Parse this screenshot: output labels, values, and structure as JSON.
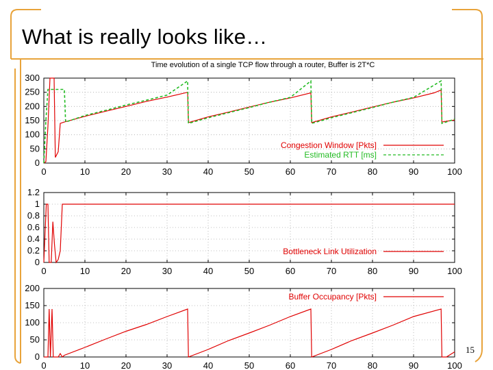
{
  "slide": {
    "title": "What is really looks like…",
    "page_number": "15",
    "accent_color": "#e8a33a"
  },
  "chart_data": [
    {
      "type": "line",
      "title": "Time evolution of a single TCP flow through a router, Buffer is 2T*C",
      "xlim": [
        0,
        100
      ],
      "ylim": [
        0,
        300
      ],
      "x_ticks": [
        0,
        10,
        20,
        30,
        40,
        50,
        60,
        70,
        80,
        90,
        100
      ],
      "y_ticks": [
        0,
        50,
        100,
        150,
        200,
        250,
        300
      ],
      "grid": true,
      "legend_position": "bottom-right",
      "series": [
        {
          "name": "Congestion Window [Pkts]",
          "color": "#e00000",
          "style": "solid",
          "points": [
            [
              0,
              0
            ],
            [
              0.5,
              5
            ],
            [
              1,
              130
            ],
            [
              1.5,
              300
            ],
            [
              2.5,
              300
            ],
            [
              2.8,
              20
            ],
            [
              3.5,
              40
            ],
            [
              4,
              140
            ],
            [
              5,
              145
            ],
            [
              10,
              165
            ],
            [
              15,
              183
            ],
            [
              20,
              200
            ],
            [
              25,
              218
            ],
            [
              30,
              233
            ],
            [
              35,
              250
            ],
            [
              35.2,
              143
            ],
            [
              40,
              163
            ],
            [
              45,
              180
            ],
            [
              50,
              198
            ],
            [
              55,
              215
            ],
            [
              60,
              230
            ],
            [
              65,
              248
            ],
            [
              65.2,
              143
            ],
            [
              70,
              163
            ],
            [
              75,
              180
            ],
            [
              80,
              198
            ],
            [
              85,
              215
            ],
            [
              90,
              230
            ],
            [
              95,
              248
            ],
            [
              96.7,
              258
            ],
            [
              96.9,
              145
            ],
            [
              99,
              150
            ],
            [
              100,
              152
            ]
          ]
        },
        {
          "name": "Estimated RTT     [ms]",
          "color": "#22bb22",
          "style": "dashed",
          "points": [
            [
              0,
              0
            ],
            [
              0.5,
              150
            ],
            [
              1,
              260
            ],
            [
              5,
              260
            ],
            [
              5.3,
              145
            ],
            [
              10,
              168
            ],
            [
              15,
              186
            ],
            [
              20,
              205
            ],
            [
              25,
              222
            ],
            [
              30,
              240
            ],
            [
              35,
              290
            ],
            [
              35.2,
              140
            ],
            [
              40,
              160
            ],
            [
              45,
              178
            ],
            [
              50,
              196
            ],
            [
              55,
              215
            ],
            [
              60,
              232
            ],
            [
              65,
              290
            ],
            [
              65.2,
              140
            ],
            [
              70,
              160
            ],
            [
              75,
              178
            ],
            [
              80,
              196
            ],
            [
              85,
              215
            ],
            [
              90,
              232
            ],
            [
              96.7,
              290
            ],
            [
              96.9,
              140
            ],
            [
              100,
              155
            ]
          ]
        }
      ]
    },
    {
      "type": "line",
      "xlim": [
        0,
        100
      ],
      "ylim": [
        0,
        1.2
      ],
      "x_ticks": [
        0,
        10,
        20,
        30,
        40,
        50,
        60,
        70,
        80,
        90,
        100
      ],
      "y_ticks": [
        0,
        0.2,
        0.4,
        0.6,
        0.8,
        1,
        1.2
      ],
      "grid": true,
      "legend_position": "bottom-right",
      "series": [
        {
          "name": "Bottleneck Link Utilization",
          "color": "#e00000",
          "style": "solid",
          "points": [
            [
              0,
              0
            ],
            [
              0.6,
              1
            ],
            [
              1,
              1
            ],
            [
              1.3,
              0
            ],
            [
              1.8,
              0
            ],
            [
              2.2,
              0.7
            ],
            [
              2.6,
              0.3
            ],
            [
              3,
              0
            ],
            [
              3.5,
              0.05
            ],
            [
              4,
              0.2
            ],
            [
              4.5,
              1
            ],
            [
              100,
              1
            ]
          ]
        }
      ]
    },
    {
      "type": "line",
      "xlim": [
        0,
        100
      ],
      "ylim": [
        0,
        200
      ],
      "x_ticks": [
        0,
        10,
        20,
        30,
        40,
        50,
        60,
        70,
        80,
        90,
        100
      ],
      "y_ticks": [
        0,
        50,
        100,
        150,
        200
      ],
      "grid": true,
      "legend_position": "top-right",
      "series": [
        {
          "name": "Buffer Occupancy [Pkts]",
          "color": "#e00000",
          "style": "solid",
          "points": [
            [
              0,
              0
            ],
            [
              1,
              0
            ],
            [
              1.3,
              140
            ],
            [
              1.6,
              0
            ],
            [
              2,
              140
            ],
            [
              2.3,
              0
            ],
            [
              3.5,
              0
            ],
            [
              4,
              10
            ],
            [
              4.5,
              0
            ],
            [
              5,
              5
            ],
            [
              10,
              28
            ],
            [
              15,
              52
            ],
            [
              20,
              75
            ],
            [
              25,
              95
            ],
            [
              30,
              118
            ],
            [
              35,
              140
            ],
            [
              35.2,
              0
            ],
            [
              40,
              22
            ],
            [
              45,
              48
            ],
            [
              50,
              70
            ],
            [
              55,
              93
            ],
            [
              60,
              118
            ],
            [
              65,
              140
            ],
            [
              65.2,
              0
            ],
            [
              70,
              22
            ],
            [
              75,
              48
            ],
            [
              80,
              70
            ],
            [
              85,
              93
            ],
            [
              90,
              118
            ],
            [
              96.7,
              140
            ],
            [
              96.9,
              0
            ],
            [
              98,
              0
            ],
            [
              100,
              15
            ]
          ]
        }
      ]
    }
  ]
}
